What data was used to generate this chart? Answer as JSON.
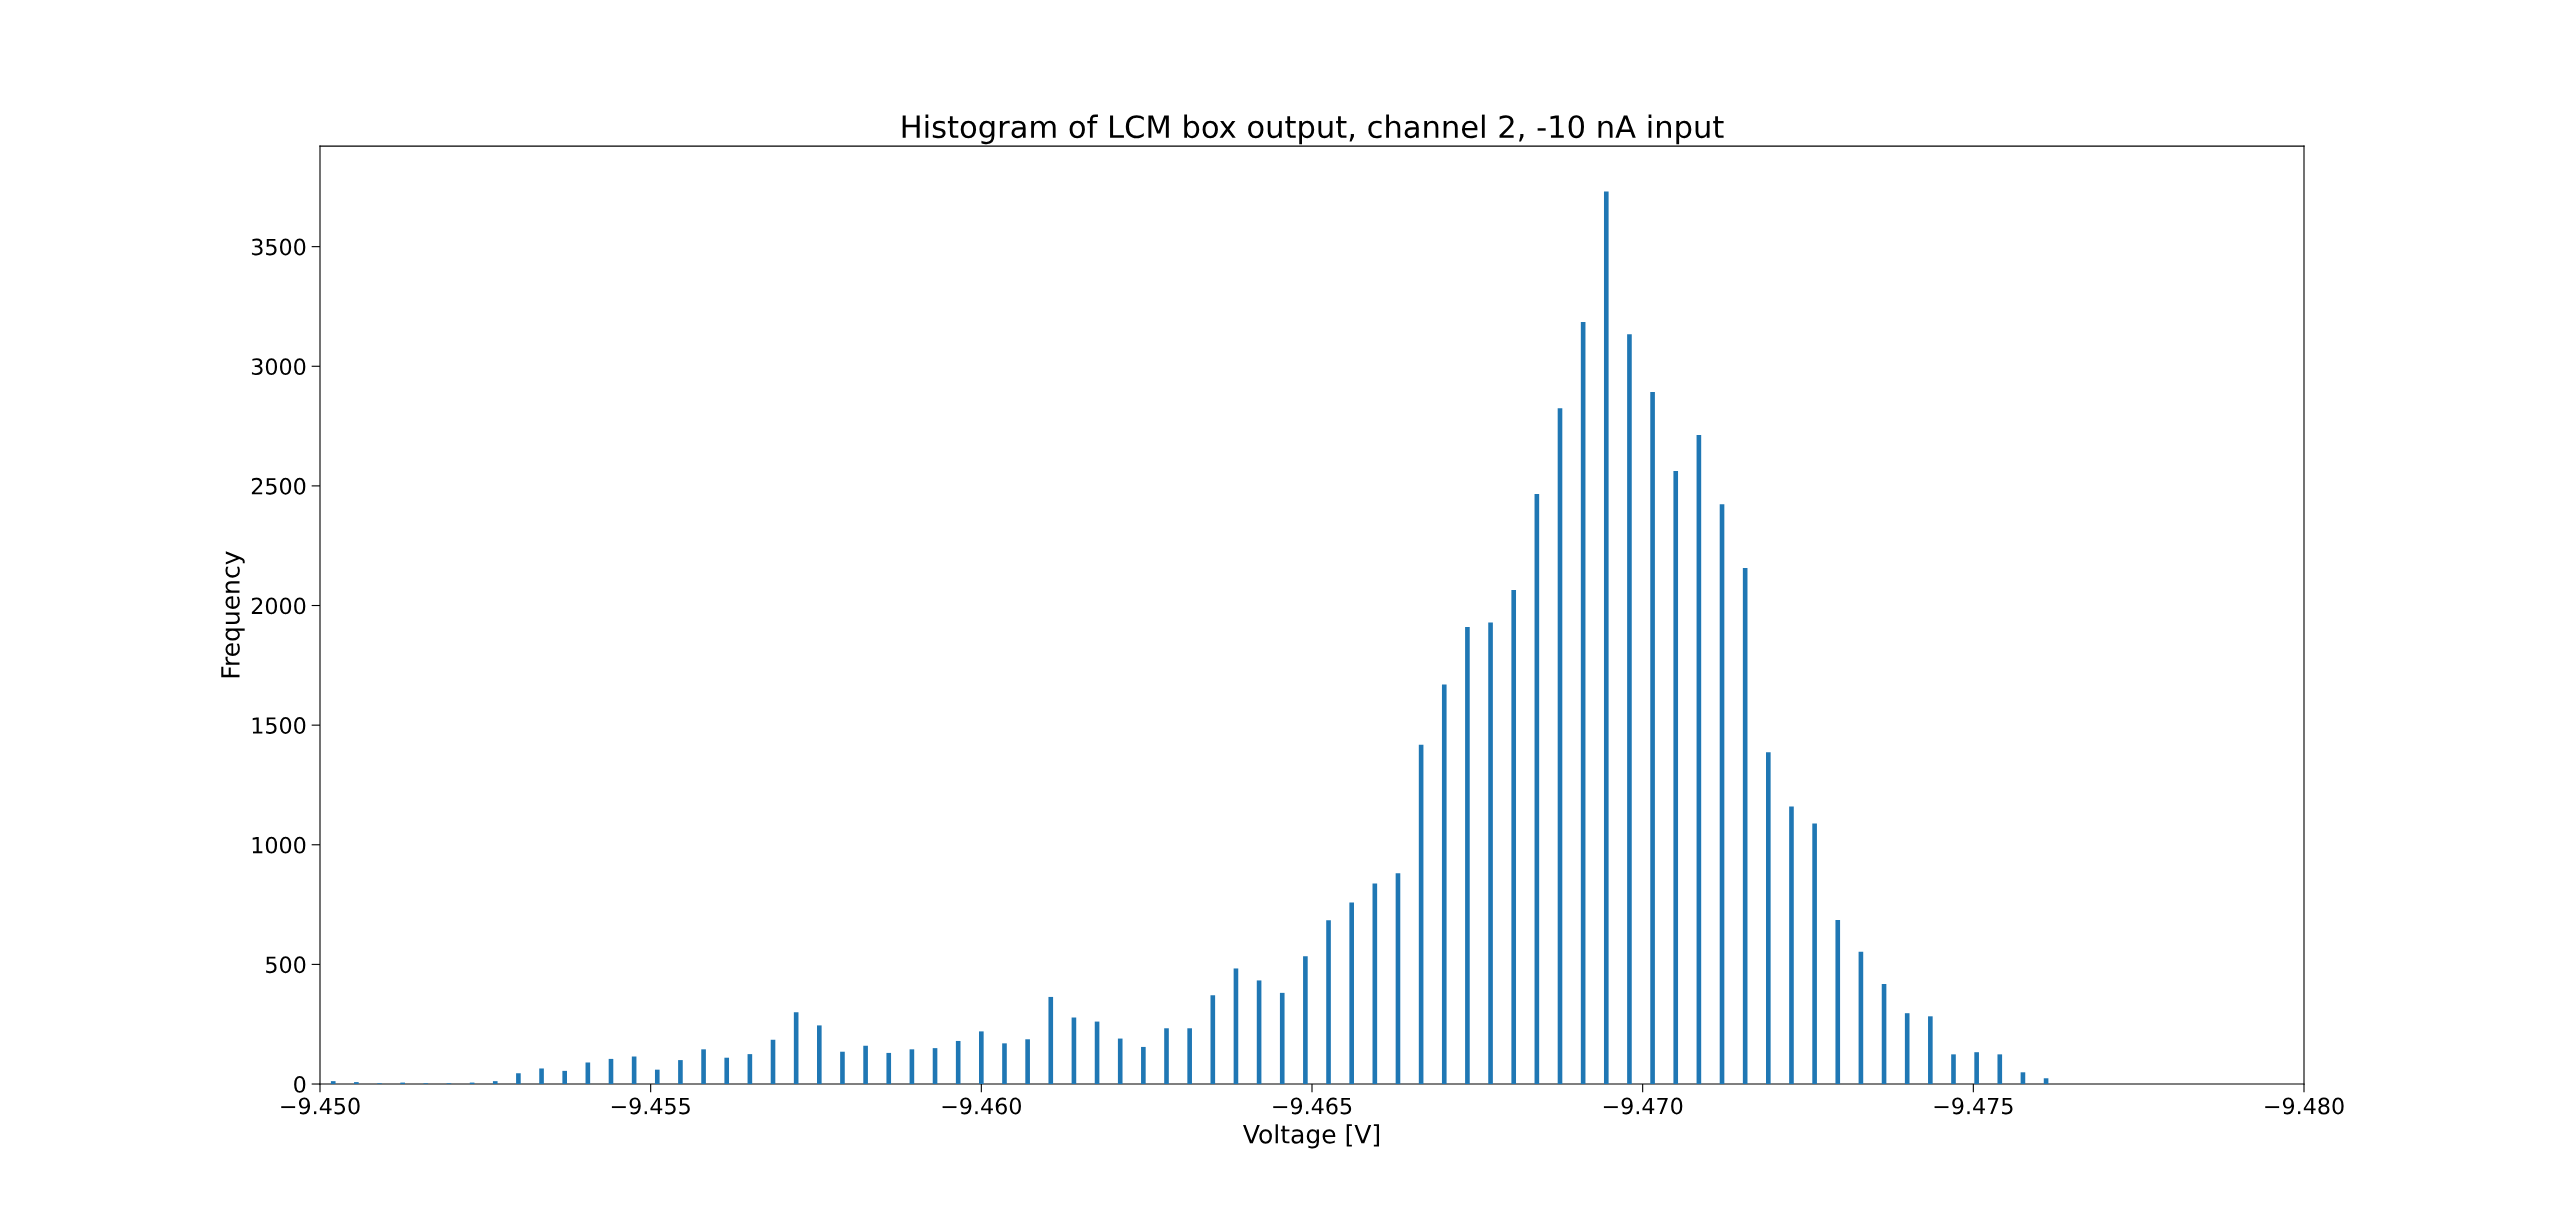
{
  "chart_data": {
    "type": "bar",
    "title": "Histogram of LCM box output, channel 2, -10 nA input",
    "xlabel": "Voltage [V]",
    "ylabel": "Frequency",
    "x": [
      -9.4502,
      -9.45055,
      -9.4509,
      -9.45125,
      -9.4516,
      -9.45195,
      -9.4523,
      -9.45265,
      -9.453,
      -9.45335,
      -9.4537,
      -9.45405,
      -9.4544,
      -9.45475,
      -9.4551,
      -9.45545,
      -9.4558,
      -9.45615,
      -9.4565,
      -9.45685,
      -9.4572,
      -9.45755,
      -9.4579,
      -9.45825,
      -9.4586,
      -9.45895,
      -9.4593,
      -9.45965,
      -9.46,
      -9.46035,
      -9.4607,
      -9.46105,
      -9.4614,
      -9.46175,
      -9.4621,
      -9.46245,
      -9.4628,
      -9.46315,
      -9.4635,
      -9.46385,
      -9.4642,
      -9.46455,
      -9.4649,
      -9.46525,
      -9.4656,
      -9.46595,
      -9.4663,
      -9.46665,
      -9.467,
      -9.46735,
      -9.4677,
      -9.46805,
      -9.4684,
      -9.46875,
      -9.4691,
      -9.46945,
      -9.4698,
      -9.47015,
      -9.4705,
      -9.47085,
      -9.4712,
      -9.47155,
      -9.4719,
      -9.47225,
      -9.4726,
      -9.47295,
      -9.4733,
      -9.47365,
      -9.474,
      -9.47435,
      -9.4747,
      -9.47505,
      -9.4754,
      -9.47575,
      -9.4761
    ],
    "values": [
      12,
      8,
      3,
      6,
      3,
      3,
      6,
      12,
      45,
      65,
      55,
      90,
      105,
      115,
      60,
      100,
      145,
      110,
      125,
      185,
      300,
      245,
      135,
      160,
      130,
      145,
      150,
      180,
      220,
      170,
      187,
      364,
      278,
      261,
      190,
      155,
      233,
      233,
      371,
      483,
      433,
      381,
      534,
      685,
      759,
      838,
      881,
      1418,
      1670,
      1910,
      1929,
      2065,
      2466,
      2825,
      3185,
      3731,
      3134,
      2892,
      2562,
      2713,
      2423,
      2157,
      1387,
      1160,
      1089,
      686,
      553,
      418,
      296,
      283,
      124,
      133,
      124,
      49,
      24
    ],
    "color": "#1f77b4",
    "xlim": [
      -9.45,
      -9.48
    ],
    "xticks": [
      {
        "value": -9.45,
        "label": "−9.450"
      },
      {
        "value": -9.455,
        "label": "−9.455"
      },
      {
        "value": -9.46,
        "label": "−9.460"
      },
      {
        "value": -9.465,
        "label": "−9.465"
      },
      {
        "value": -9.47,
        "label": "−9.470"
      },
      {
        "value": -9.475,
        "label": "−9.475"
      },
      {
        "value": -9.48,
        "label": "−9.480"
      }
    ],
    "ylim": [
      0,
      3920
    ],
    "yticks": [
      0,
      500,
      1000,
      1500,
      2000,
      2500,
      3000,
      3500
    ],
    "grid": false
  }
}
